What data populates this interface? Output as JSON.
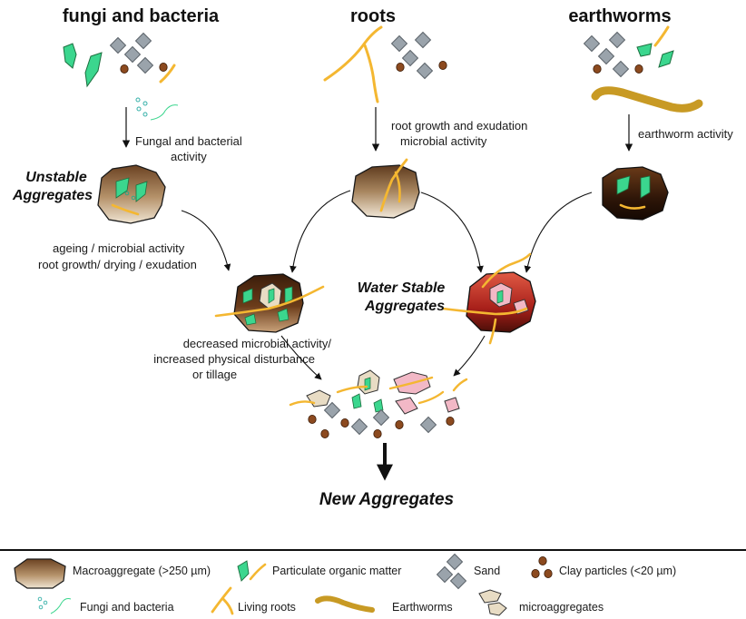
{
  "headers": {
    "fungi": "fungi and bacteria",
    "roots": "roots",
    "earthworms": "earthworms"
  },
  "processes": {
    "fungal_line1": "Fungal and bacterial",
    "fungal_line2": "activity",
    "root_line1": "root growth and exudation",
    "root_line2": "microbial activity",
    "earthworm": "earthworm activity",
    "ageing_line1": "ageing / microbial activity",
    "ageing_line2": "root growth/ drying / exudation",
    "decrease_line1": "decreased microbial activity/",
    "decrease_line2": "increased physical disturbance",
    "decrease_line3": "or tillage"
  },
  "aggregates": {
    "unstable_line1": "Unstable",
    "unstable_line2": "Aggregates",
    "water_line1": "Water Stable",
    "water_line2": "Aggregates",
    "new": "New Aggregates"
  },
  "legend": {
    "macroaggregate": "Macroaggregate (>250 µm)",
    "pom": "Particulate organic matter",
    "sand": "Sand",
    "clay": "Clay particles (<20 µm)",
    "fungi": "Fungi and bacteria",
    "roots": "Living roots",
    "earthworms": "Earthworms",
    "micro": "microaggregates"
  },
  "colors": {
    "root": "#f4b731",
    "pom": "#3bd68e",
    "sand": "#9aa3ab",
    "clay": "#8c4a1f",
    "earthworm": "#c89a24",
    "aggregate_brown": "#7a4e26",
    "aggregate_red": "#b4241c",
    "micro_pink": "#f2b8c6",
    "micro_tan": "#e8dcc4"
  }
}
